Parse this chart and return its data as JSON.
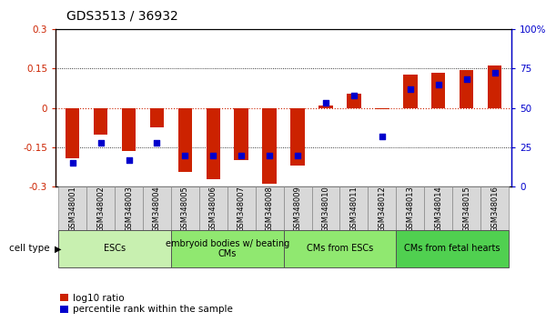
{
  "title": "GDS3513 / 36932",
  "samples": [
    "GSM348001",
    "GSM348002",
    "GSM348003",
    "GSM348004",
    "GSM348005",
    "GSM348006",
    "GSM348007",
    "GSM348008",
    "GSM348009",
    "GSM348010",
    "GSM348011",
    "GSM348012",
    "GSM348013",
    "GSM348014",
    "GSM348015",
    "GSM348016"
  ],
  "log10_ratio": [
    -0.19,
    -0.1,
    -0.165,
    -0.075,
    -0.245,
    -0.27,
    -0.2,
    -0.29,
    -0.22,
    0.01,
    0.055,
    -0.005,
    0.125,
    0.135,
    0.145,
    0.16
  ],
  "percentile_rank": [
    15,
    28,
    17,
    28,
    20,
    20,
    20,
    20,
    20,
    53,
    58,
    32,
    62,
    65,
    68,
    72
  ],
  "cell_type_groups": [
    {
      "label": "ESCs",
      "start": 0,
      "end": 3,
      "color": "#c8f0b0"
    },
    {
      "label": "embryoid bodies w/ beating\nCMs",
      "start": 4,
      "end": 7,
      "color": "#90e870"
    },
    {
      "label": "CMs from ESCs",
      "start": 8,
      "end": 11,
      "color": "#90e870"
    },
    {
      "label": "CMs from fetal hearts",
      "start": 12,
      "end": 15,
      "color": "#50d050"
    }
  ],
  "ylim_left": [
    -0.3,
    0.3
  ],
  "ylim_right": [
    0,
    100
  ],
  "yticks_left": [
    -0.3,
    -0.15,
    0,
    0.15,
    0.3
  ],
  "yticks_right": [
    0,
    25,
    50,
    75,
    100
  ],
  "ytick_labels_right": [
    "0",
    "25",
    "50",
    "75",
    "100%"
  ],
  "bar_color_red": "#cc2200",
  "bar_color_blue": "#0000cc",
  "bg_color": "#ffffff",
  "bar_width": 0.5
}
